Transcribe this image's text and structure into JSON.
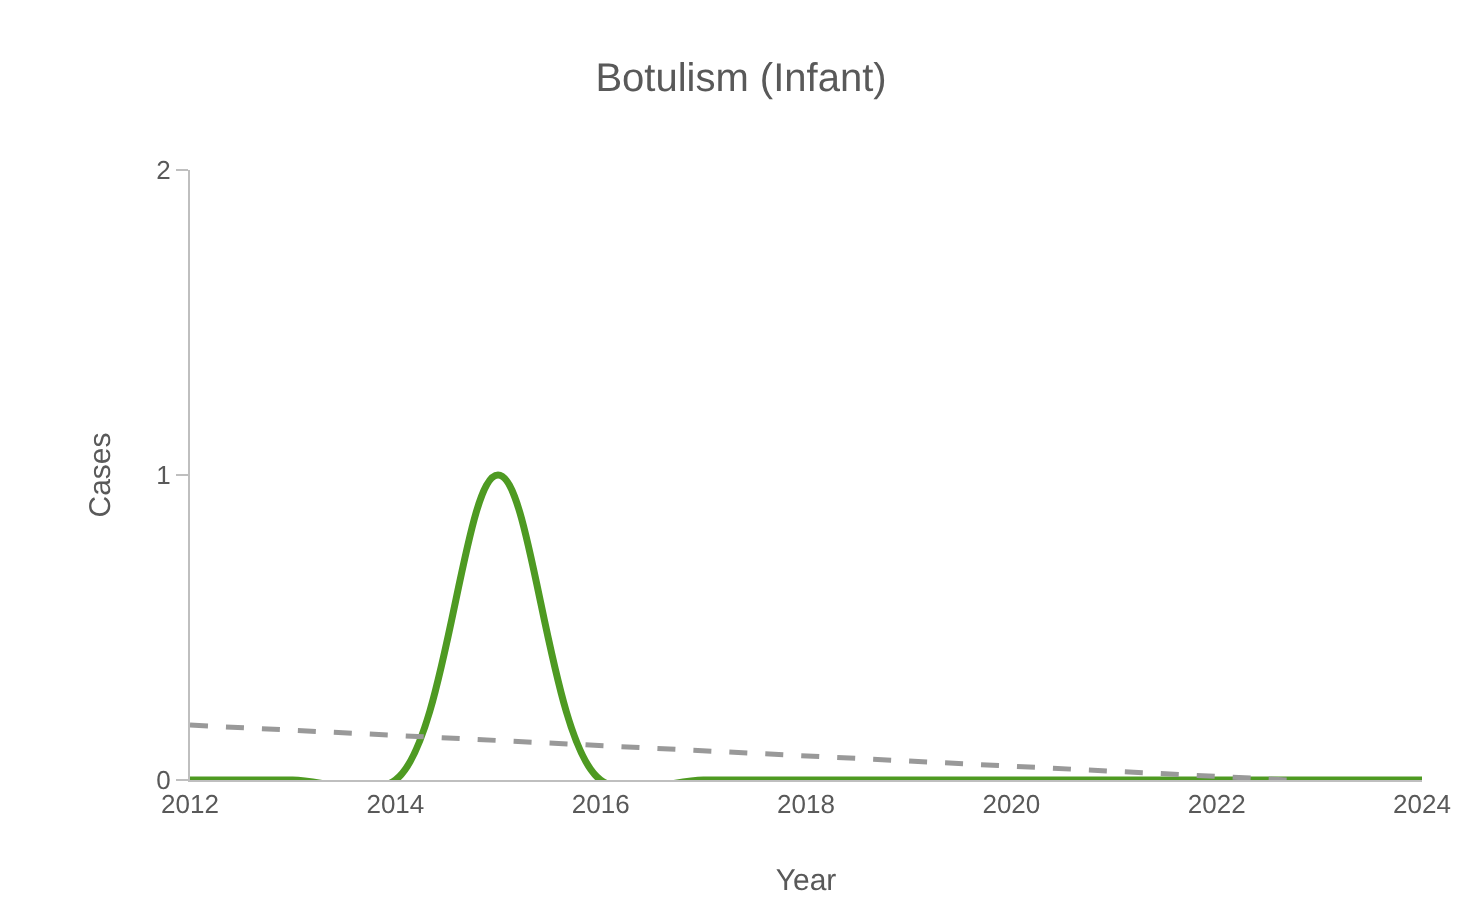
{
  "chart_data": {
    "type": "line",
    "title": "Botulism (Infant)",
    "xlabel": "Year",
    "ylabel": "Cases",
    "x": [
      2012,
      2013,
      2014,
      2015,
      2016,
      2017,
      2018,
      2019,
      2020,
      2021,
      2022,
      2023,
      2024
    ],
    "series": [
      {
        "color": "#4e9a22",
        "values": [
          0,
          0,
          0,
          1,
          0,
          0,
          0,
          0,
          0,
          0,
          0,
          0,
          0
        ]
      },
      {
        "type": "line",
        "color": "#999999",
        "line_style": "dashed",
        "x": [
          2012,
          2022.7
        ],
        "values": [
          0.18,
          0
        ]
      }
    ],
    "xlim": [
      2012,
      2024
    ],
    "xticks": [
      2012,
      2014,
      2016,
      2018,
      2020,
      2022,
      2024
    ],
    "ylim": [
      0,
      2
    ],
    "yticks": [
      0,
      1,
      2
    ],
    "grid": false,
    "marker": "none",
    "line_style": "solid"
  }
}
